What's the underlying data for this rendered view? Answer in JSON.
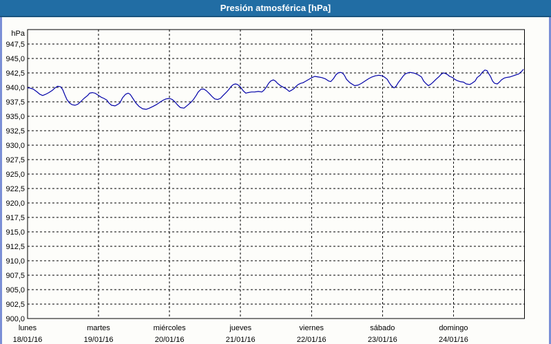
{
  "window": {
    "title": "Presión atmosférica [hPa]"
  },
  "colors": {
    "titlebar_bg": "#216da4",
    "titlebar_underline": "#1a547f",
    "side_border": "#7b8fd6",
    "bottom_border": "#1c3d68",
    "plot_frame": "#000000",
    "gridline": "#000000",
    "line": "#0202a8",
    "background": "#fdfdfa"
  },
  "chart_data": {
    "type": "line",
    "title": "Presión atmosférica [hPa]",
    "grid": {
      "dashed": true,
      "color": "#000000"
    },
    "legend": "none",
    "y_axis": {
      "unit_label": "hPa",
      "min": 900,
      "max": 950,
      "tick_step": 2.5,
      "decimal_separator": ",",
      "tick_values": [
        947.5,
        945.0,
        942.5,
        940.0,
        937.5,
        935.0,
        932.5,
        930.0,
        927.5,
        925.0,
        922.5,
        920.0,
        917.5,
        915.0,
        912.5,
        910.0,
        907.5,
        905.0,
        902.5,
        900.0
      ],
      "tick_labels": [
        "947,5",
        "945,0",
        "942,5",
        "940,0",
        "937,5",
        "935,0",
        "932,5",
        "930,0",
        "927,5",
        "925,0",
        "922,5",
        "920,0",
        "917,5",
        "915,0",
        "912,5",
        "910,0",
        "907,5",
        "905,0",
        "902,5",
        "900,0"
      ]
    },
    "x_axis": {
      "range_hours": [
        0,
        168
      ],
      "gridline_hours": [
        24,
        48,
        72,
        96,
        120,
        144
      ],
      "day_labels": [
        {
          "name": "lunes",
          "date": "18/01/16",
          "hour": 0
        },
        {
          "name": "martes",
          "date": "19/01/16",
          "hour": 24
        },
        {
          "name": "miércoles",
          "date": "20/01/16",
          "hour": 48
        },
        {
          "name": "jueves",
          "date": "21/01/16",
          "hour": 72
        },
        {
          "name": "viernes",
          "date": "22/01/16",
          "hour": 96
        },
        {
          "name": "sábado",
          "date": "23/01/16",
          "hour": 120
        },
        {
          "name": "domingo",
          "date": "24/01/16",
          "hour": 144
        }
      ]
    },
    "series": [
      {
        "name": "Presión atmosférica",
        "color": "#0202a8",
        "points_hours_hpa": [
          [
            0,
            939.9
          ],
          [
            0.7,
            939.9
          ],
          [
            1.9,
            939.7
          ],
          [
            3,
            939.3
          ],
          [
            4.2,
            938.8
          ],
          [
            5.1,
            938.6
          ],
          [
            6.1,
            938.8
          ],
          [
            7.2,
            939.1
          ],
          [
            8.4,
            939.5
          ],
          [
            9.3,
            939.9
          ],
          [
            10.2,
            940.2
          ],
          [
            11.2,
            940.1
          ],
          [
            11.9,
            939.6
          ],
          [
            12.6,
            938.7
          ],
          [
            13.3,
            937.9
          ],
          [
            14.2,
            937.3
          ],
          [
            15.1,
            937.0
          ],
          [
            16.1,
            936.9
          ],
          [
            17,
            937.1
          ],
          [
            17.9,
            937.5
          ],
          [
            19.1,
            938.1
          ],
          [
            20.3,
            938.6
          ],
          [
            21,
            939.0
          ],
          [
            21.9,
            939.1
          ],
          [
            22.8,
            939.0
          ],
          [
            23.7,
            938.7
          ],
          [
            24.9,
            938.3
          ],
          [
            25.8,
            938.1
          ],
          [
            26.8,
            937.8
          ],
          [
            27.5,
            937.3
          ],
          [
            28.4,
            936.9
          ],
          [
            29.6,
            936.8
          ],
          [
            30.3,
            937.0
          ],
          [
            31.2,
            937.3
          ],
          [
            32.1,
            938.2
          ],
          [
            33.1,
            938.8
          ],
          [
            34,
            939.0
          ],
          [
            34.7,
            938.8
          ],
          [
            35.6,
            938.1
          ],
          [
            36.6,
            937.3
          ],
          [
            37.7,
            936.7
          ],
          [
            38.9,
            936.3
          ],
          [
            40.1,
            936.2
          ],
          [
            41.2,
            936.4
          ],
          [
            42.4,
            936.7
          ],
          [
            43.5,
            937.0
          ],
          [
            44.7,
            937.4
          ],
          [
            45.9,
            937.8
          ],
          [
            46.8,
            938.0
          ],
          [
            48,
            938.1
          ],
          [
            48.9,
            937.9
          ],
          [
            49.8,
            937.5
          ],
          [
            50.8,
            936.9
          ],
          [
            51.7,
            936.5
          ],
          [
            52.9,
            936.4
          ],
          [
            53.6,
            936.7
          ],
          [
            54.5,
            937.1
          ],
          [
            55.4,
            937.5
          ],
          [
            56.1,
            937.9
          ],
          [
            57,
            938.6
          ],
          [
            57.7,
            939.2
          ],
          [
            58.7,
            939.7
          ],
          [
            59.6,
            939.7
          ],
          [
            60.5,
            939.4
          ],
          [
            61.5,
            938.9
          ],
          [
            62.4,
            938.4
          ],
          [
            63.3,
            938.0
          ],
          [
            64.3,
            937.9
          ],
          [
            65.2,
            938.1
          ],
          [
            66.1,
            938.6
          ],
          [
            67.1,
            939.1
          ],
          [
            68,
            939.6
          ],
          [
            68.9,
            940.2
          ],
          [
            69.6,
            940.5
          ],
          [
            70.3,
            940.6
          ],
          [
            71,
            940.5
          ],
          [
            71.7,
            940.2
          ],
          [
            72.2,
            939.9
          ],
          [
            72.9,
            939.4
          ],
          [
            73.8,
            939.0
          ],
          [
            74.5,
            939.1
          ],
          [
            75.7,
            939.2
          ],
          [
            76.8,
            939.2
          ],
          [
            78,
            939.3
          ],
          [
            79.2,
            939.2
          ],
          [
            79.9,
            939.5
          ],
          [
            80.8,
            940.1
          ],
          [
            81.5,
            940.7
          ],
          [
            82.2,
            941.1
          ],
          [
            83.1,
            941.3
          ],
          [
            83.8,
            941.1
          ],
          [
            84.5,
            940.7
          ],
          [
            85.5,
            940.3
          ],
          [
            86.2,
            940.1
          ],
          [
            86.9,
            939.9
          ],
          [
            87.8,
            939.6
          ],
          [
            88.5,
            939.3
          ],
          [
            89.2,
            939.5
          ],
          [
            90.1,
            939.8
          ],
          [
            90.8,
            940.2
          ],
          [
            91.5,
            940.5
          ],
          [
            92.4,
            940.7
          ],
          [
            93.1,
            940.8
          ],
          [
            93.8,
            941.0
          ],
          [
            94.8,
            941.3
          ],
          [
            95.5,
            941.5
          ],
          [
            96.2,
            941.7
          ],
          [
            97.1,
            941.9
          ],
          [
            98.3,
            941.8
          ],
          [
            99.4,
            941.7
          ],
          [
            100.6,
            941.5
          ],
          [
            101.8,
            941.1
          ],
          [
            102.5,
            941.0
          ],
          [
            103.4,
            941.5
          ],
          [
            104.3,
            942.2
          ],
          [
            105,
            942.5
          ],
          [
            105.7,
            942.6
          ],
          [
            106.4,
            942.5
          ],
          [
            107.1,
            942.1
          ],
          [
            107.8,
            941.4
          ],
          [
            109,
            940.8
          ],
          [
            109.9,
            940.5
          ],
          [
            110.6,
            940.3
          ],
          [
            111.8,
            940.4
          ],
          [
            112.9,
            940.7
          ],
          [
            114.1,
            941.1
          ],
          [
            115.3,
            941.5
          ],
          [
            116.4,
            941.8
          ],
          [
            117.6,
            942.0
          ],
          [
            118.8,
            942.1
          ],
          [
            119.9,
            942.0
          ],
          [
            120.6,
            941.8
          ],
          [
            121.6,
            941.4
          ],
          [
            122.3,
            940.8
          ],
          [
            123,
            940.3
          ],
          [
            123.9,
            939.9
          ],
          [
            124.6,
            940.2
          ],
          [
            125.3,
            940.8
          ],
          [
            126.2,
            941.4
          ],
          [
            126.9,
            941.9
          ],
          [
            127.6,
            942.3
          ],
          [
            128.5,
            942.5
          ],
          [
            129.2,
            942.6
          ],
          [
            130.4,
            942.5
          ],
          [
            131.1,
            942.4
          ],
          [
            132.3,
            942.1
          ],
          [
            133.2,
            941.8
          ],
          [
            133.9,
            941.1
          ],
          [
            134.6,
            940.7
          ],
          [
            135.5,
            940.3
          ],
          [
            136.2,
            940.5
          ],
          [
            136.9,
            940.8
          ],
          [
            138.1,
            941.4
          ],
          [
            139.2,
            941.9
          ],
          [
            139.9,
            942.3
          ],
          [
            140.6,
            942.5
          ],
          [
            141.3,
            942.4
          ],
          [
            142,
            942.2
          ],
          [
            142.7,
            941.9
          ],
          [
            143.7,
            941.7
          ],
          [
            144.4,
            941.4
          ],
          [
            145.1,
            941.2
          ],
          [
            146.2,
            941.0
          ],
          [
            147.4,
            940.9
          ],
          [
            148.3,
            940.6
          ],
          [
            149.5,
            940.5
          ],
          [
            150.2,
            940.7
          ],
          [
            151.3,
            941.1
          ],
          [
            152,
            941.7
          ],
          [
            153,
            942.1
          ],
          [
            153.7,
            942.6
          ],
          [
            154.6,
            943.0
          ],
          [
            155.3,
            942.9
          ],
          [
            156,
            942.3
          ],
          [
            156.5,
            941.9
          ],
          [
            157.2,
            941.1
          ],
          [
            157.9,
            940.7
          ],
          [
            158.8,
            940.6
          ],
          [
            159.5,
            940.9
          ],
          [
            160.2,
            941.3
          ],
          [
            161.1,
            941.6
          ],
          [
            161.8,
            941.7
          ],
          [
            163,
            941.8
          ],
          [
            164.2,
            942.0
          ],
          [
            165.3,
            942.2
          ],
          [
            166,
            942.3
          ],
          [
            166.9,
            942.7
          ],
          [
            167.6,
            943.1
          ]
        ]
      }
    ]
  }
}
